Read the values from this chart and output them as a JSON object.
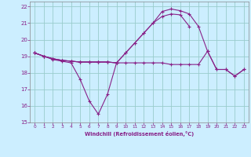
{
  "bg_color": "#cceeff",
  "line_color": "#882288",
  "grid_color": "#99cccc",
  "xlabel": "Windchill (Refroidissement éolien,°C)",
  "xlim": [
    -0.5,
    23.5
  ],
  "ylim": [
    15,
    22.3
  ],
  "xticks": [
    0,
    1,
    2,
    3,
    4,
    5,
    6,
    7,
    8,
    9,
    10,
    11,
    12,
    13,
    14,
    15,
    16,
    17,
    18,
    19,
    20,
    21,
    22,
    23
  ],
  "yticks": [
    15,
    16,
    17,
    18,
    19,
    20,
    21,
    22
  ],
  "series": [
    {
      "x": [
        0,
        1,
        2,
        3,
        4,
        5,
        6,
        7,
        8,
        9
      ],
      "y": [
        19.2,
        19.0,
        18.8,
        18.7,
        18.6,
        17.6,
        16.3,
        15.5,
        16.7,
        18.6
      ]
    },
    {
      "x": [
        0,
        1,
        2,
        3,
        4,
        5,
        6,
        7,
        8,
        9,
        10,
        11,
        12,
        13,
        14,
        15,
        16,
        17,
        18,
        19,
        20,
        21,
        22,
        23
      ],
      "y": [
        19.2,
        19.0,
        18.85,
        18.75,
        18.7,
        18.65,
        18.65,
        18.65,
        18.65,
        18.6,
        18.6,
        18.6,
        18.6,
        18.6,
        18.6,
        18.5,
        18.5,
        18.5,
        18.5,
        19.3,
        18.2,
        18.2,
        17.8,
        18.2
      ]
    },
    {
      "x": [
        0,
        1,
        2,
        3,
        4,
        5,
        6,
        7,
        8,
        9,
        10,
        11,
        12,
        13,
        14,
        15,
        16,
        17,
        18,
        19,
        20,
        21,
        22,
        23
      ],
      "y": [
        19.2,
        19.0,
        18.85,
        18.75,
        18.7,
        18.65,
        18.65,
        18.65,
        18.65,
        18.6,
        19.2,
        19.8,
        20.4,
        21.0,
        21.4,
        21.55,
        21.5,
        20.8,
        null,
        null,
        null,
        null,
        null,
        null
      ]
    },
    {
      "x": [
        0,
        1,
        2,
        3,
        4,
        5,
        6,
        7,
        8,
        9,
        10,
        11,
        12,
        13,
        14,
        15,
        16,
        17,
        18,
        19,
        20,
        21,
        22,
        23
      ],
      "y": [
        19.2,
        19.0,
        18.85,
        18.75,
        18.7,
        18.65,
        18.65,
        18.65,
        18.65,
        18.6,
        19.2,
        19.8,
        20.4,
        21.0,
        21.7,
        21.85,
        21.75,
        21.55,
        20.8,
        19.3,
        18.2,
        18.2,
        17.8,
        18.2
      ]
    }
  ]
}
